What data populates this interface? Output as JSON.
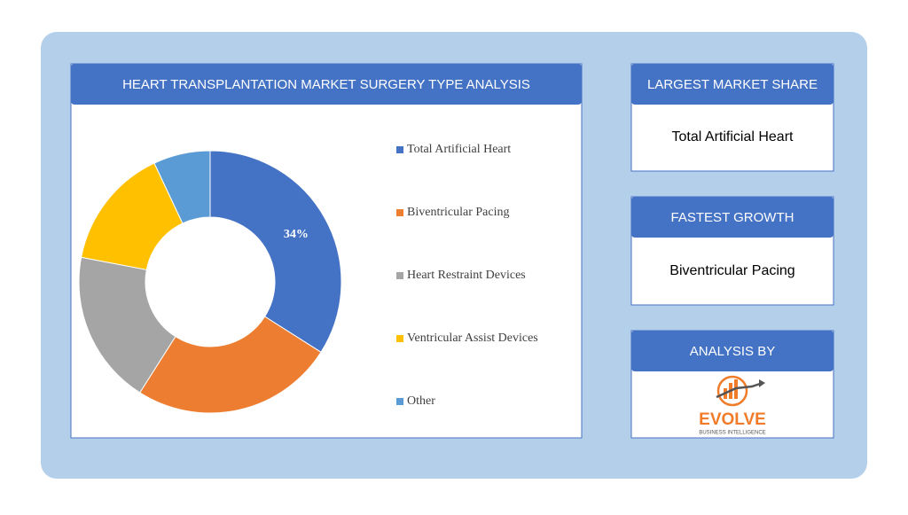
{
  "chart_data": {
    "type": "donut",
    "title": "HEART TRANSPLANTATION MARKET SURGERY TYPE ANALYSIS",
    "categories": [
      "Total Artificial Heart",
      "Biventricular Pacing",
      "Heart Restraint Devices",
      "Ventricular Assist Devices",
      "Other"
    ],
    "values": [
      34,
      25,
      19,
      15,
      7
    ],
    "value_labels": [
      "34%",
      null,
      null,
      null,
      null
    ],
    "colors": [
      "#4472c4",
      "#ed7d31",
      "#a5a5a5",
      "#ffc000",
      "#5b9bd5"
    ]
  },
  "side_panels": [
    {
      "title": "LARGEST MARKET SHARE",
      "text": "Total Artificial Heart"
    },
    {
      "title": "FASTEST GROWTH",
      "text": "Biventricular Pacing"
    },
    {
      "title": "ANALYSIS BY"
    }
  ],
  "logo": {
    "name": "EVOLVE",
    "tagline": "BUSINESS INTELLIGENCE"
  }
}
